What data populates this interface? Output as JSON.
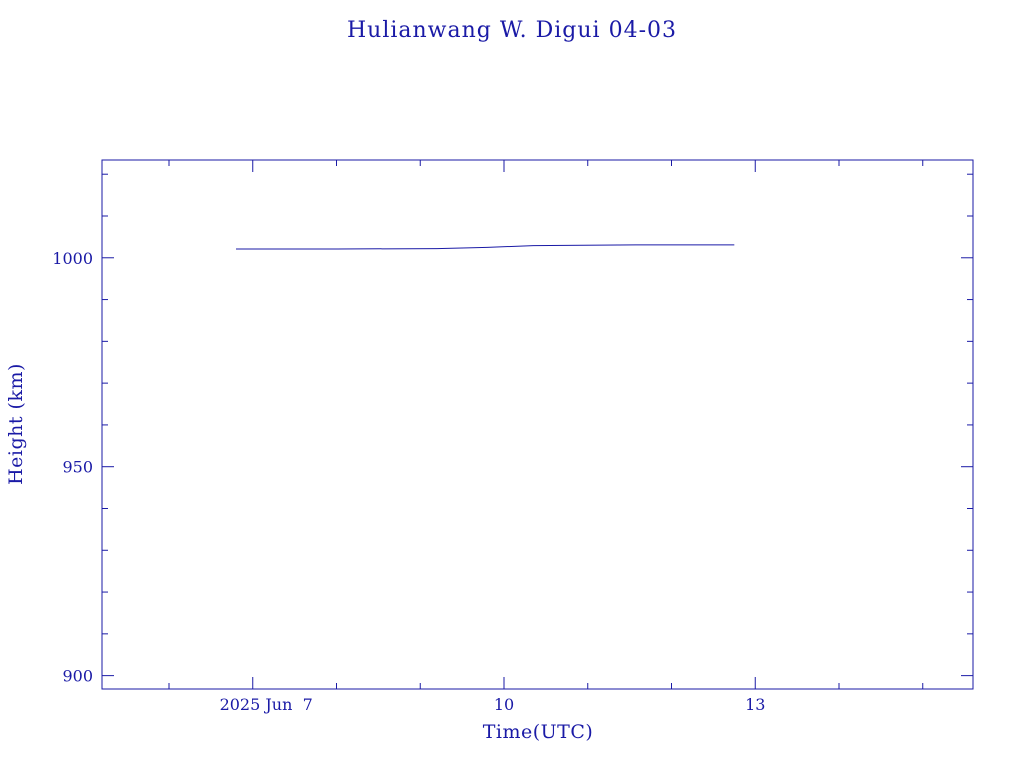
{
  "colors": {
    "ink": "#1a1aa6",
    "background": "#ffffff"
  },
  "chart_data": {
    "type": "line",
    "title": "Hulianwang W. Digui 04-03",
    "xlabel": "Time(UTC)",
    "ylabel": "Height (km)",
    "x_unit": "days, June 2025 (UTC)",
    "xlim": [
      5.2,
      15.6
    ],
    "ylim": [
      896.8,
      1023.4
    ],
    "x_ticks": [
      {
        "value": 7,
        "label": "2025 Jun  7"
      },
      {
        "value": 10,
        "label": "10"
      },
      {
        "value": 13,
        "label": "13"
      }
    ],
    "y_ticks": [
      {
        "value": 900,
        "label": "900"
      },
      {
        "value": 950,
        "label": "950"
      },
      {
        "value": 1000,
        "label": "1000"
      }
    ],
    "x_minor_step": 1,
    "y_minor_step": 10,
    "grid": false,
    "series": [
      {
        "x": [
          6.8,
          8.0,
          9.2,
          9.8,
          10.35,
          10.95,
          11.8,
          12.75
        ],
        "y": [
          1002.1,
          1002.1,
          1002.2,
          1002.5,
          1002.9,
          1003.0,
          1003.1,
          1003.1
        ]
      }
    ]
  }
}
